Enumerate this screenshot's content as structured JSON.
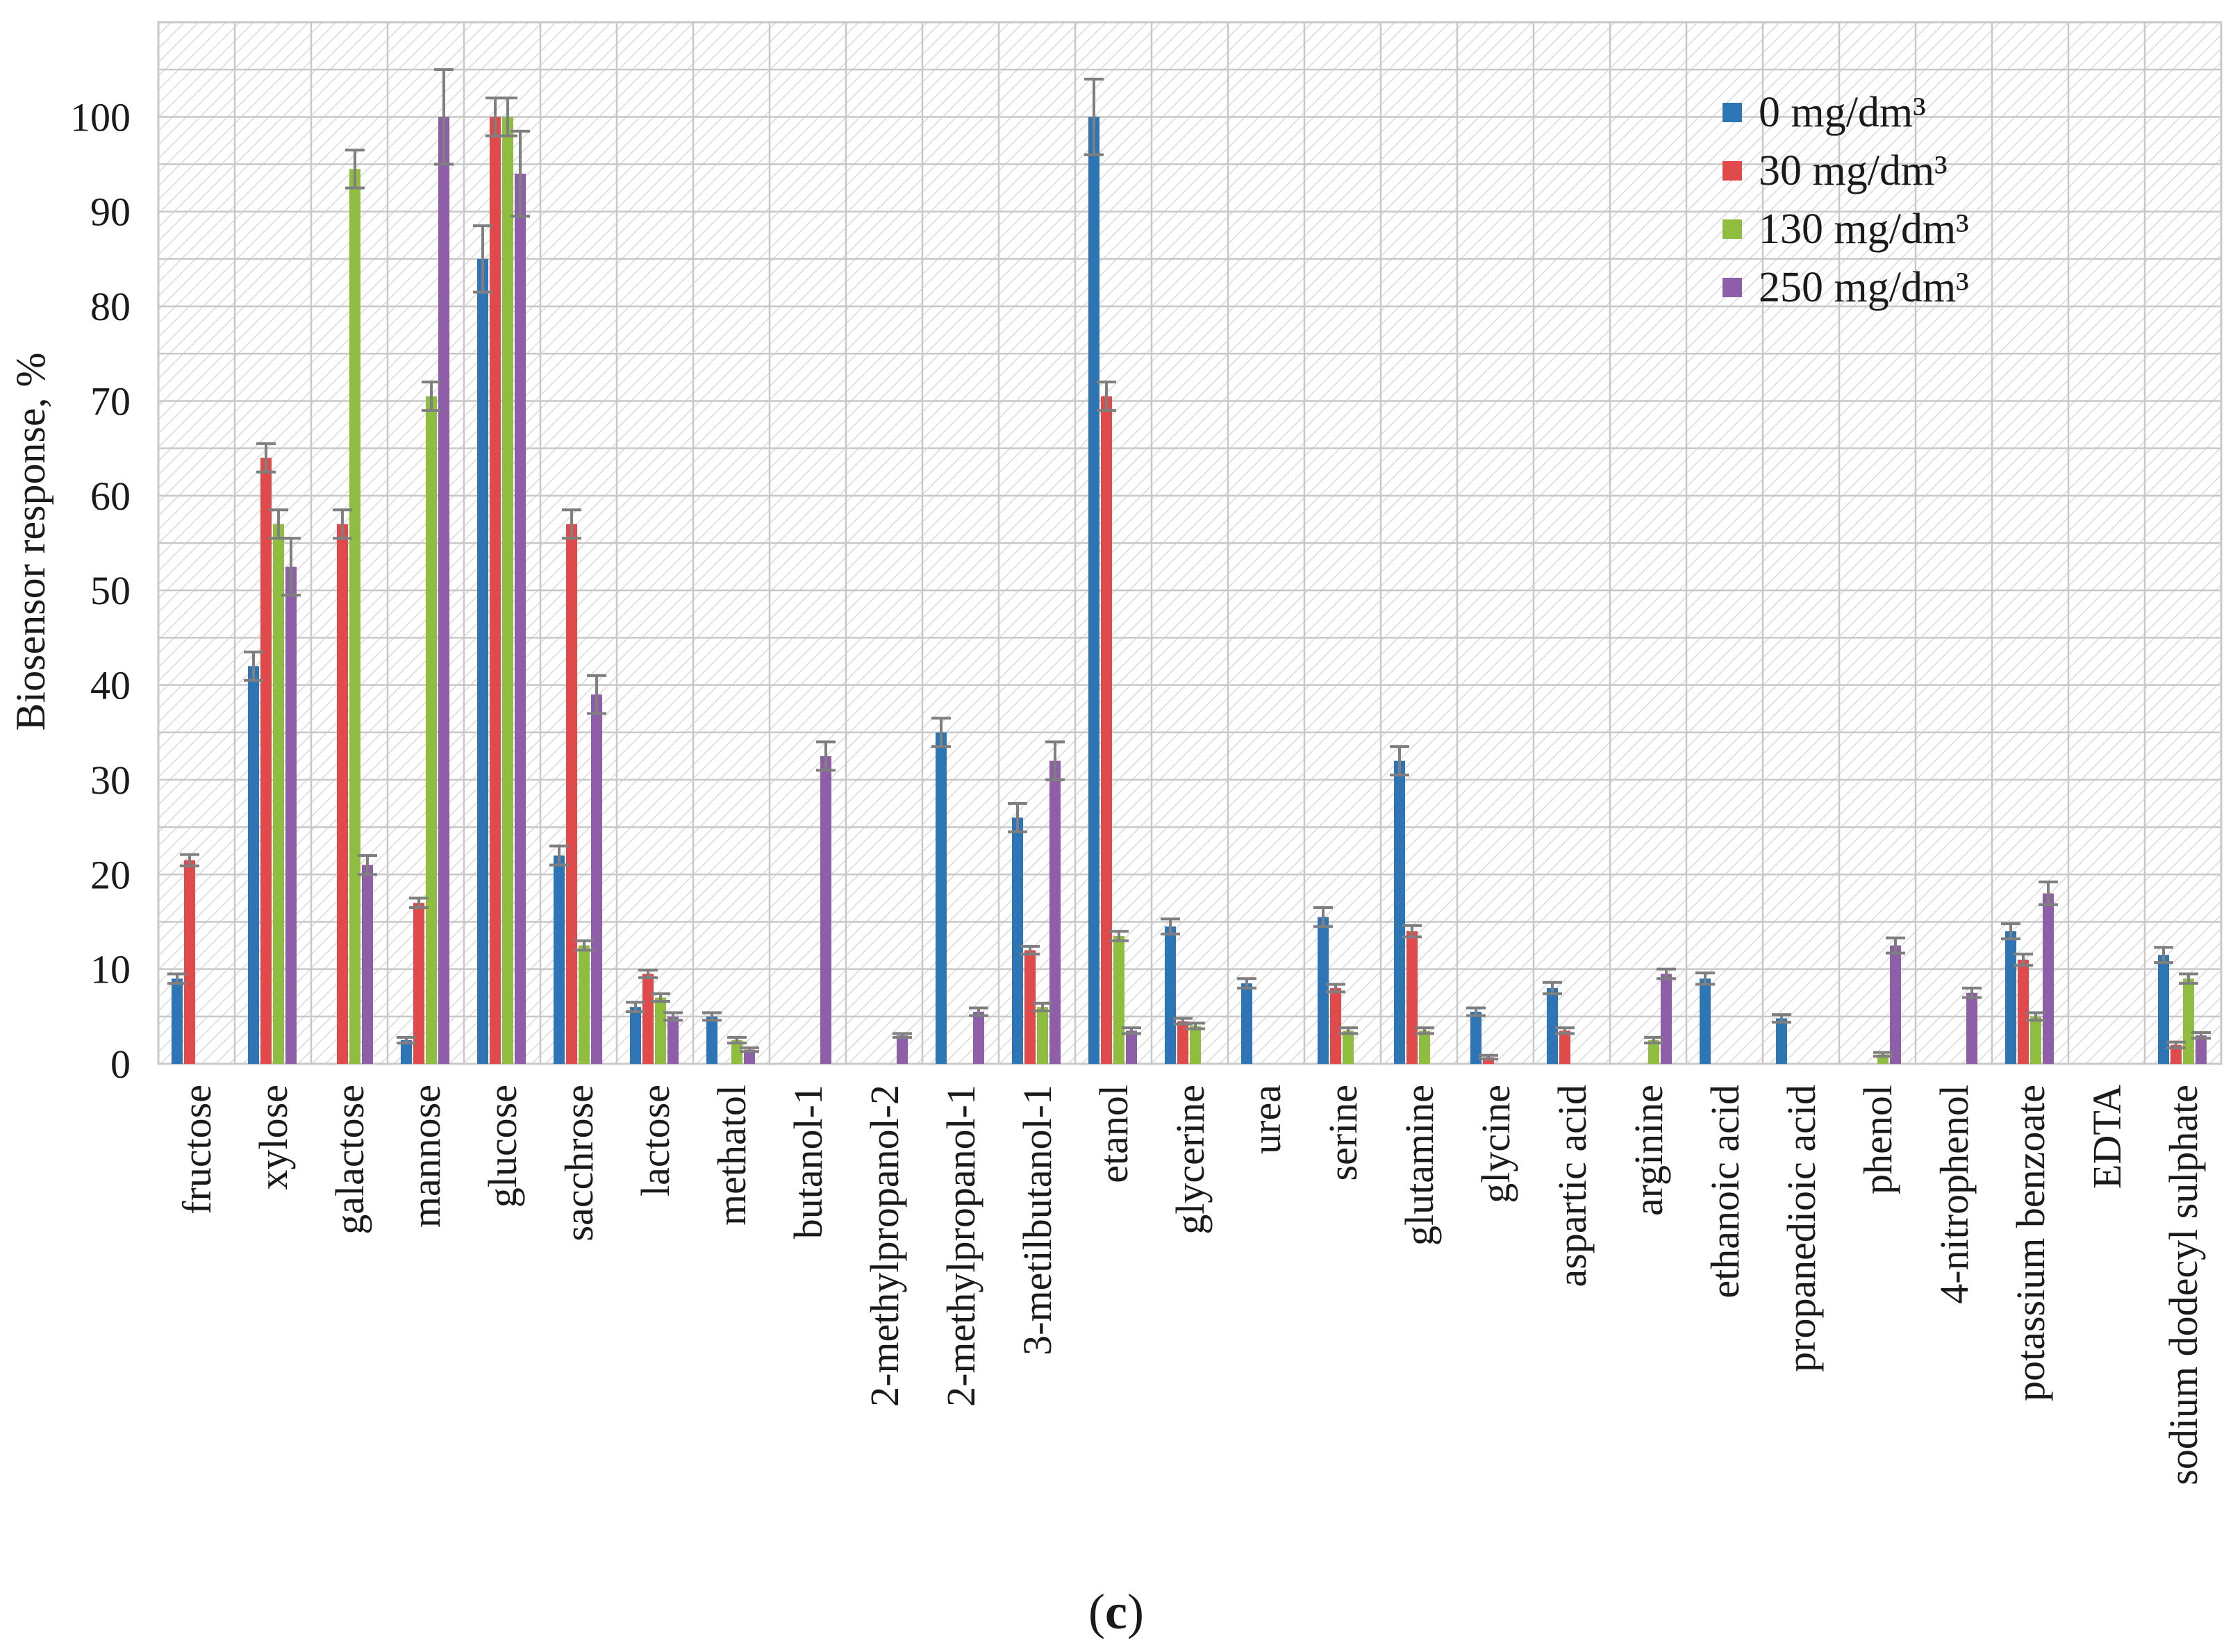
{
  "chart_data": {
    "type": "bar",
    "ylabel": "Biosensor response, %",
    "xlabel": "",
    "ylim": [
      0,
      110
    ],
    "yticks": [
      0,
      10,
      20,
      30,
      40,
      50,
      60,
      70,
      80,
      90,
      100
    ],
    "grid": true,
    "legend_position": "top-right",
    "panel_label": {
      "open": "(",
      "letter": "c",
      "close": ")"
    },
    "categories": [
      "fructose",
      "xylose",
      "galactose",
      "mannose",
      "glucose",
      "sacchrose",
      "lactose",
      "methatol",
      "butanol-1",
      "2-methylpropanol-2",
      "2-methylpropanol-1",
      "3-metilbutanol-1",
      "etanol",
      "glycerine",
      "urea",
      "serine",
      "glutamine",
      "glycine",
      "aspartic acid",
      "arginine",
      "ethanoic acid",
      "propanedioic acid",
      "phenol",
      "4-nitrophenol",
      "potassium benzoate",
      "EDTA",
      "sodium dodecyl sulphate"
    ],
    "series": [
      {
        "name": "0 mg/dm³",
        "color": "#2e75b6",
        "values": [
          9,
          42,
          0,
          2.5,
          85,
          22,
          6,
          5,
          0,
          0,
          35,
          26,
          100,
          14.5,
          8.5,
          15.5,
          32,
          5.5,
          8,
          0,
          9,
          4.8,
          0,
          0,
          14,
          0,
          11.5
        ],
        "errors": [
          0.5,
          1.5,
          0,
          0.3,
          3.5,
          1,
          0.5,
          0.4,
          0,
          0,
          1.5,
          1.5,
          4,
          0.8,
          0.5,
          1,
          1.5,
          0.4,
          0.6,
          0,
          0.6,
          0.4,
          0,
          0,
          0.8,
          0,
          0.8
        ]
      },
      {
        "name": "30 mg/dm³",
        "color": "#e04a4a",
        "values": [
          21.5,
          64,
          57,
          17,
          100,
          57,
          9.5,
          0,
          0,
          0,
          0,
          12,
          70.5,
          4.5,
          0,
          8,
          14,
          0.7,
          3.5,
          0,
          0,
          0,
          0,
          0,
          11,
          0,
          2
        ],
        "errors": [
          0.6,
          1.5,
          1.5,
          0.5,
          2,
          1.5,
          0.4,
          0,
          0,
          0,
          0,
          0.4,
          1.5,
          0.3,
          0,
          0.4,
          0.6,
          0.2,
          0.3,
          0,
          0,
          0,
          0,
          0,
          0.6,
          0,
          0.3
        ]
      },
      {
        "name": "130 mg/dm³",
        "color": "#8fbd3f",
        "values": [
          0,
          57,
          94.5,
          70.5,
          100,
          12.5,
          7,
          2.5,
          0,
          0,
          0,
          6,
          13.5,
          4,
          0,
          3.5,
          3.5,
          0,
          0,
          2.5,
          0,
          0,
          1,
          0,
          5,
          0,
          9
        ],
        "errors": [
          0,
          1.5,
          2,
          1.5,
          2,
          0.5,
          0.4,
          0.3,
          0,
          0,
          0,
          0.4,
          0.5,
          0.3,
          0,
          0.3,
          0.3,
          0,
          0,
          0.3,
          0,
          0,
          0.2,
          0,
          0.4,
          0,
          0.5
        ]
      },
      {
        "name": "250 mg/dm³",
        "color": "#8e5ea8",
        "values": [
          0,
          52.5,
          21,
          100,
          94,
          39,
          5,
          1.5,
          32.5,
          3,
          5.5,
          32,
          3.5,
          0,
          0,
          0,
          0,
          0,
          0,
          9.5,
          0,
          0,
          12.5,
          7.5,
          18,
          0,
          3
        ],
        "errors": [
          0,
          3,
          1,
          5,
          4.5,
          2,
          0.4,
          0.2,
          1.5,
          0.2,
          0.4,
          2,
          0.3,
          0,
          0,
          0,
          0,
          0,
          0,
          0.5,
          0,
          0,
          0.8,
          0.5,
          1.2,
          0,
          0.3
        ]
      }
    ]
  }
}
